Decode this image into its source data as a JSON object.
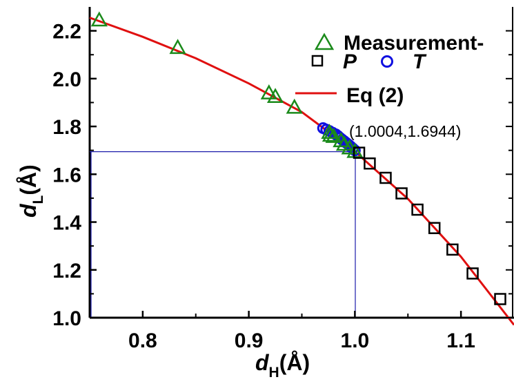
{
  "chart_data": {
    "type": "scatter",
    "x_axis": {
      "label_main": "d",
      "label_sub": "H",
      "label_unit": "(Å)",
      "range": [
        0.75,
        1.15
      ],
      "ticks": [
        0.8,
        0.9,
        1.0,
        1.1
      ],
      "tick_labels": [
        "0.8",
        "0.9",
        "1.0",
        "1.1"
      ]
    },
    "y_axis": {
      "label_main": "d",
      "label_sub": "L",
      "label_unit": "(Å)",
      "range": [
        1.0,
        2.3
      ],
      "ticks": [
        1.0,
        1.2,
        1.4,
        1.6,
        1.8,
        2.0,
        2.2
      ],
      "tick_labels": [
        "1.0",
        "1.2",
        "1.4",
        "1.6",
        "1.8",
        "2.0",
        "2.2"
      ]
    },
    "legend": {
      "placement": "top-right",
      "entries": [
        {
          "key": "measurement",
          "label": "Measurement-",
          "marker": "triangle",
          "color": "#1a8a1a"
        },
        {
          "key": "p",
          "label": "P",
          "marker": "square",
          "color": "#000000"
        },
        {
          "key": "t",
          "label": "T",
          "marker": "circle",
          "color": "#1010e0"
        },
        {
          "key": "eq2",
          "label": "Eq (2)",
          "marker": "line",
          "color": "#e01010"
        }
      ]
    },
    "series": [
      {
        "name": "Measurement-",
        "marker": "triangle",
        "color": "#1a8a1a",
        "points": [
          [
            0.759,
            2.245
          ],
          [
            0.833,
            2.13
          ],
          [
            0.919,
            1.94
          ],
          [
            0.925,
            1.925
          ],
          [
            0.943,
            1.88
          ],
          [
            0.976,
            1.775
          ],
          [
            0.977,
            1.763
          ],
          [
            0.98,
            1.758
          ],
          [
            0.987,
            1.74
          ],
          [
            0.99,
            1.725
          ],
          [
            0.995,
            1.71
          ],
          [
            1.0,
            1.695
          ]
        ]
      },
      {
        "name": "P",
        "marker": "square",
        "color": "#000000",
        "points": [
          [
            1.004,
            1.69
          ],
          [
            1.014,
            1.645
          ],
          [
            1.029,
            1.585
          ],
          [
            1.044,
            1.52
          ],
          [
            1.059,
            1.452
          ],
          [
            1.075,
            1.375
          ],
          [
            1.092,
            1.285
          ],
          [
            1.111,
            1.185
          ],
          [
            1.137,
            1.078
          ]
        ]
      },
      {
        "name": "T",
        "marker": "circle",
        "color": "#1010e0",
        "points": [
          [
            0.97,
            1.793
          ],
          [
            0.973,
            1.787
          ],
          [
            0.976,
            1.781
          ],
          [
            0.979,
            1.774
          ],
          [
            0.982,
            1.767
          ],
          [
            0.984,
            1.76
          ],
          [
            0.986,
            1.752
          ],
          [
            0.988,
            1.745
          ],
          [
            0.99,
            1.738
          ],
          [
            0.992,
            1.731
          ],
          [
            0.994,
            1.724
          ],
          [
            0.996,
            1.716
          ],
          [
            0.998,
            1.708
          ],
          [
            1.0,
            1.7
          ]
        ]
      },
      {
        "name": "Eq (2)",
        "type": "line",
        "color": "#e01010",
        "points": [
          [
            0.75,
            2.255
          ],
          [
            0.8,
            2.175
          ],
          [
            0.85,
            2.085
          ],
          [
            0.9,
            1.98
          ],
          [
            0.95,
            1.86
          ],
          [
            1.0,
            1.695
          ],
          [
            1.05,
            1.497
          ],
          [
            1.1,
            1.255
          ],
          [
            1.15,
            0.97
          ]
        ]
      }
    ],
    "annotation": {
      "text": "(1.0004,1.6944)",
      "point": [
        1.0004,
        1.6944
      ],
      "color": "#1a1aaa"
    },
    "grid": false
  }
}
